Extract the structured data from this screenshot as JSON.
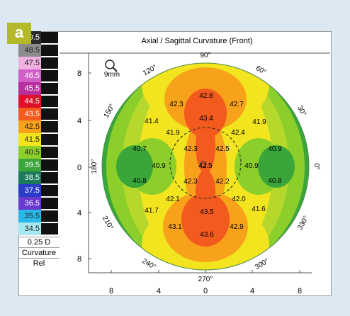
{
  "panel_label": "a",
  "title": "Axial / Sagittal Curvature (Front)",
  "scale": {
    "steps": [
      {
        "label": "49.5",
        "color": "#2b2b2b"
      },
      {
        "label": "48.5",
        "color": "#8c8c8c"
      },
      {
        "label": "47.5",
        "color": "#f0b0e0"
      },
      {
        "label": "46.5",
        "color": "#d060c8"
      },
      {
        "label": "45.5",
        "color": "#b82e9c"
      },
      {
        "label": "44.5",
        "color": "#e0102a"
      },
      {
        "label": "43.5",
        "color": "#f25a1e"
      },
      {
        "label": "42.5",
        "color": "#f7a21a"
      },
      {
        "label": "41.5",
        "color": "#f2e41f"
      },
      {
        "label": "40.5",
        "color": "#8ccf2a"
      },
      {
        "label": "39.5",
        "color": "#3aa63a"
      },
      {
        "label": "38.5",
        "color": "#1a7a5a"
      },
      {
        "label": "37.5",
        "color": "#2a3cc8"
      },
      {
        "label": "36.5",
        "color": "#6a3ad0"
      },
      {
        "label": "35.5",
        "color": "#2ab8e8"
      },
      {
        "label": "34.5",
        "color": "#a8e8f0"
      }
    ],
    "step_text": "0.25 D",
    "mode_text": "Curvature",
    "ref_text": "Rel"
  },
  "zoom_text": "9mm",
  "angles": [
    "90°",
    "60°",
    "30°",
    "0°",
    "330°",
    "300°",
    "270°",
    "240°",
    "210°",
    "180°",
    "150°",
    "120°"
  ],
  "left_ticks": [
    "8",
    "4",
    "0",
    "4",
    "8"
  ],
  "bottom_ticks": [
    "8",
    "4",
    "0",
    "4",
    "8"
  ],
  "readings": [
    "42.8",
    "42.3",
    "42.7",
    "41.4",
    "43.4",
    "41.9",
    "41.9",
    "42.4",
    "40.7",
    "42.3",
    "42.5",
    "40.9",
    "40.9",
    "42.5",
    "40.9",
    "40.8",
    "42.3",
    "42.2",
    "40.8",
    "42.1",
    "42.0",
    "41.7",
    "43.5",
    "41.6",
    "43.1",
    "42.9",
    "43.6"
  ]
}
